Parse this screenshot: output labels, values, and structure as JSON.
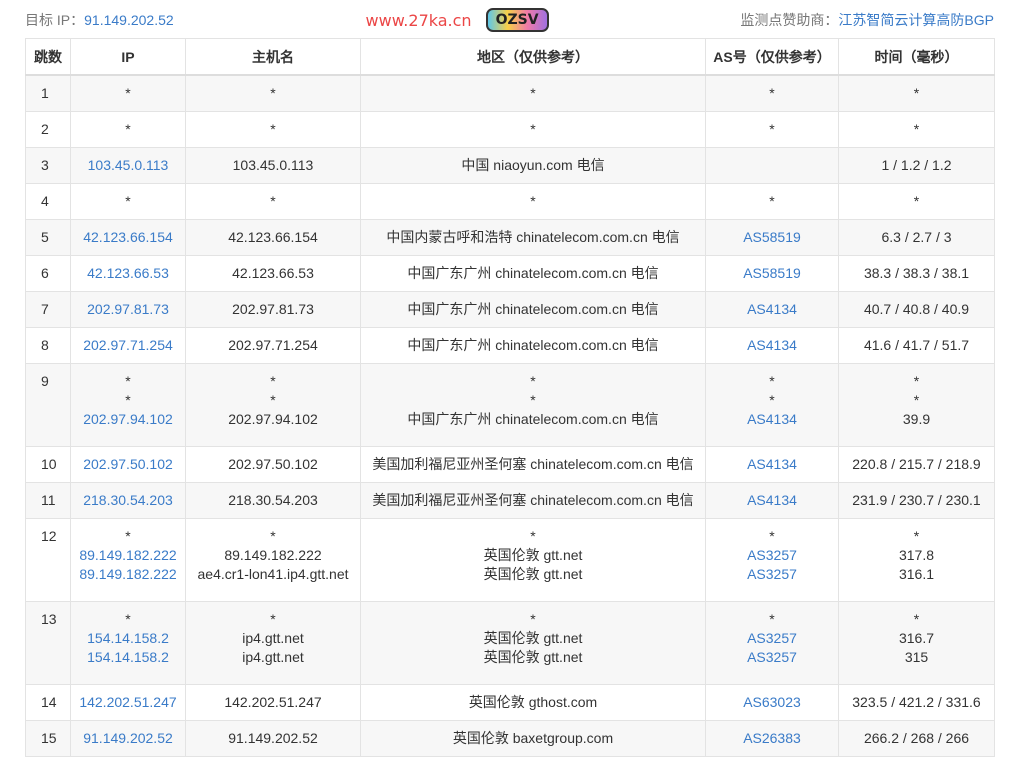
{
  "header": {
    "target_label": "目标 IP：",
    "target_ip": "91.149.202.52",
    "sponsor_label": "监测点赞助商：",
    "sponsor": "江苏智简云计算高防BGP"
  },
  "columns": [
    "跳数",
    "IP",
    "主机名",
    "地区（仅供参考）",
    "AS号（仅供参考）",
    "时间（毫秒）"
  ],
  "rows": [
    {
      "hop": "1",
      "ip": [
        "*"
      ],
      "host": [
        "*"
      ],
      "region": [
        "*"
      ],
      "as": [
        "*"
      ],
      "time": [
        "*"
      ]
    },
    {
      "hop": "2",
      "ip": [
        "*"
      ],
      "host": [
        "*"
      ],
      "region": [
        "*"
      ],
      "as": [
        "*"
      ],
      "time": [
        "*"
      ]
    },
    {
      "hop": "3",
      "ip": [
        "103.45.0.113"
      ],
      "host": [
        "103.45.0.113"
      ],
      "region": [
        "中国 niaoyun.com 电信"
      ],
      "as": [
        ""
      ],
      "time": [
        "1 / 1.2 / 1.2"
      ]
    },
    {
      "hop": "4",
      "ip": [
        "*"
      ],
      "host": [
        "*"
      ],
      "region": [
        "*"
      ],
      "as": [
        "*"
      ],
      "time": [
        "*"
      ]
    },
    {
      "hop": "5",
      "ip": [
        "42.123.66.154"
      ],
      "host": [
        "42.123.66.154"
      ],
      "region": [
        "中国内蒙古呼和浩特 chinatelecom.com.cn 电信"
      ],
      "as": [
        "AS58519"
      ],
      "time": [
        "6.3 / 2.7 / 3"
      ]
    },
    {
      "hop": "6",
      "ip": [
        "42.123.66.53"
      ],
      "host": [
        "42.123.66.53"
      ],
      "region": [
        "中国广东广州 chinatelecom.com.cn 电信"
      ],
      "as": [
        "AS58519"
      ],
      "time": [
        "38.3 / 38.3 / 38.1"
      ]
    },
    {
      "hop": "7",
      "ip": [
        "202.97.81.73"
      ],
      "host": [
        "202.97.81.73"
      ],
      "region": [
        "中国广东广州 chinatelecom.com.cn 电信"
      ],
      "as": [
        "AS4134"
      ],
      "time": [
        "40.7 / 40.8 / 40.9"
      ]
    },
    {
      "hop": "8",
      "ip": [
        "202.97.71.254"
      ],
      "host": [
        "202.97.71.254"
      ],
      "region": [
        "中国广东广州 chinatelecom.com.cn 电信"
      ],
      "as": [
        "AS4134"
      ],
      "time": [
        "41.6 / 41.7 / 51.7"
      ]
    },
    {
      "hop": "9",
      "ip": [
        "*",
        "*",
        "202.97.94.102"
      ],
      "host": [
        "*",
        "*",
        "202.97.94.102"
      ],
      "region": [
        "*",
        "*",
        "中国广东广州 chinatelecom.com.cn 电信"
      ],
      "as": [
        "*",
        "*",
        "AS4134"
      ],
      "time": [
        "*",
        "*",
        "39.9"
      ]
    },
    {
      "hop": "10",
      "ip": [
        "202.97.50.102"
      ],
      "host": [
        "202.97.50.102"
      ],
      "region": [
        "美国加利福尼亚州圣何塞 chinatelecom.com.cn 电信"
      ],
      "as": [
        "AS4134"
      ],
      "time": [
        "220.8 / 215.7 / 218.9"
      ]
    },
    {
      "hop": "11",
      "ip": [
        "218.30.54.203"
      ],
      "host": [
        "218.30.54.203"
      ],
      "region": [
        "美国加利福尼亚州圣何塞 chinatelecom.com.cn 电信"
      ],
      "as": [
        "AS4134"
      ],
      "time": [
        "231.9 / 230.7 / 230.1"
      ]
    },
    {
      "hop": "12",
      "ip": [
        "*",
        "89.149.182.222",
        "89.149.182.222"
      ],
      "host": [
        "*",
        "89.149.182.222",
        "ae4.cr1-lon41.ip4.gtt.net"
      ],
      "region": [
        "*",
        "英国伦敦 gtt.net",
        "英国伦敦 gtt.net"
      ],
      "as": [
        "*",
        "AS3257",
        "AS3257"
      ],
      "time": [
        "*",
        "317.8",
        "316.1"
      ]
    },
    {
      "hop": "13",
      "ip": [
        "*",
        "154.14.158.2",
        "154.14.158.2"
      ],
      "host": [
        "*",
        "ip4.gtt.net",
        "ip4.gtt.net"
      ],
      "region": [
        "*",
        "英国伦敦 gtt.net",
        "英国伦敦 gtt.net"
      ],
      "as": [
        "*",
        "AS3257",
        "AS3257"
      ],
      "time": [
        "*",
        "316.7",
        "315"
      ]
    },
    {
      "hop": "14",
      "ip": [
        "142.202.51.247"
      ],
      "host": [
        "142.202.51.247"
      ],
      "region": [
        "英国伦敦 gthost.com"
      ],
      "as": [
        "AS63023"
      ],
      "time": [
        "323.5 / 421.2 / 331.6"
      ]
    },
    {
      "hop": "15",
      "ip": [
        "91.149.202.52"
      ],
      "host": [
        "91.149.202.52"
      ],
      "region": [
        "英国伦敦 baxetgroup.com"
      ],
      "as": [
        "AS26383"
      ],
      "time": [
        "266.2 / 268 / 266"
      ]
    }
  ],
  "watermark": "www.27ka.cn",
  "sticker": "OZSV",
  "colors": {
    "link": "#3a7bc8",
    "watermark": "#eb4646"
  }
}
